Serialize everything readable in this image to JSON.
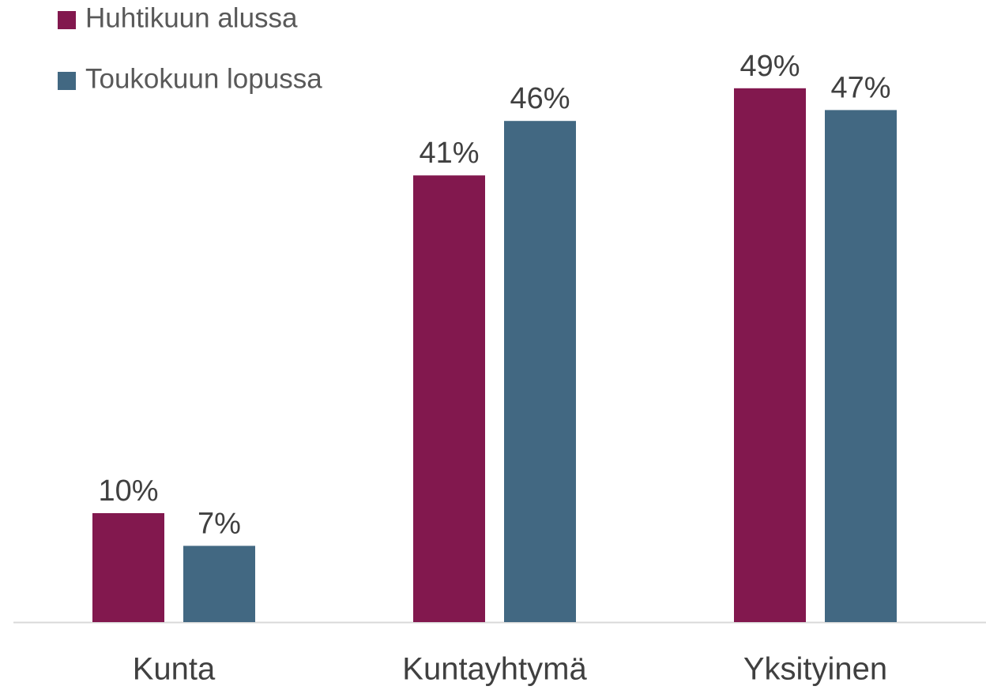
{
  "chart_data": {
    "type": "bar",
    "categories": [
      "Kunta",
      "Kuntayhtymä",
      "Yksityinen"
    ],
    "series": [
      {
        "name": "Huhtikuun alussa",
        "color": "#82184e",
        "values": [
          10,
          41,
          49
        ],
        "value_labels": [
          "10%",
          "41%",
          "49%"
        ]
      },
      {
        "name": "Toukokuun lopussa",
        "color": "#426882",
        "values": [
          7,
          46,
          47
        ],
        "value_labels": [
          "7%",
          "46%",
          "47%"
        ]
      }
    ],
    "legend": "top-left"
  }
}
